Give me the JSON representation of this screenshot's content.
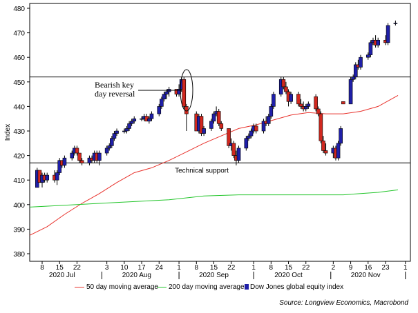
{
  "chart_data": {
    "type": "candlestick",
    "ylabel": "Index",
    "ylim": [
      380,
      480
    ],
    "yticks": [
      380,
      390,
      400,
      410,
      420,
      430,
      440,
      450,
      460,
      470,
      480
    ],
    "xlim": [
      "2020-07-03",
      "2020-12-03"
    ],
    "xticks": [
      {
        "date": "2020-07-08",
        "label": "8"
      },
      {
        "date": "2020-07-15",
        "label": "15"
      },
      {
        "date": "2020-07-22",
        "label": "22"
      },
      {
        "date": "2020-08-03",
        "label": "3"
      },
      {
        "date": "2020-08-10",
        "label": "10"
      },
      {
        "date": "2020-08-17",
        "label": "17"
      },
      {
        "date": "2020-08-24",
        "label": "24"
      },
      {
        "date": "2020-09-01",
        "label": "1"
      },
      {
        "date": "2020-09-08",
        "label": "8"
      },
      {
        "date": "2020-09-15",
        "label": "15"
      },
      {
        "date": "2020-09-22",
        "label": "22"
      },
      {
        "date": "2020-10-01",
        "label": "1"
      },
      {
        "date": "2020-10-08",
        "label": "8"
      },
      {
        "date": "2020-10-15",
        "label": "15"
      },
      {
        "date": "2020-10-22",
        "label": "22"
      },
      {
        "date": "2020-11-02",
        "label": "2"
      },
      {
        "date": "2020-11-09",
        "label": "9"
      },
      {
        "date": "2020-11-16",
        "label": "16"
      },
      {
        "date": "2020-11-23",
        "label": "23"
      },
      {
        "date": "2020-12-01",
        "label": "1"
      }
    ],
    "month_labels": [
      {
        "date": "2020-07-16",
        "label": "2020 Jul"
      },
      {
        "date": "2020-08-15",
        "label": "2020 Aug"
      },
      {
        "date": "2020-09-15",
        "label": "2020 Sep"
      },
      {
        "date": "2020-10-15",
        "label": "2020 Oct"
      },
      {
        "date": "2020-11-15",
        "label": "2020 Nov"
      }
    ],
    "series": [
      {
        "name": "50 day moving average",
        "color": "#e8312b",
        "points": [
          [
            "2020-07-03",
            387.5
          ],
          [
            "2020-07-10",
            391
          ],
          [
            "2020-07-17",
            396
          ],
          [
            "2020-07-24",
            400.5
          ],
          [
            "2020-07-31",
            404.5
          ],
          [
            "2020-08-07",
            409
          ],
          [
            "2020-08-14",
            413
          ],
          [
            "2020-08-21",
            415
          ],
          [
            "2020-08-28",
            418
          ],
          [
            "2020-09-04",
            421.5
          ],
          [
            "2020-09-11",
            425
          ],
          [
            "2020-09-18",
            428
          ],
          [
            "2020-09-25",
            431
          ],
          [
            "2020-10-02",
            432.5
          ],
          [
            "2020-10-09",
            434.5
          ],
          [
            "2020-10-16",
            436.5
          ],
          [
            "2020-10-23",
            437.5
          ],
          [
            "2020-10-30",
            437
          ],
          [
            "2020-11-06",
            437
          ],
          [
            "2020-11-13",
            438
          ],
          [
            "2020-11-20",
            440
          ],
          [
            "2020-11-28",
            444.5
          ]
        ]
      },
      {
        "name": "200 day moving average",
        "color": "#22c52a",
        "points": [
          [
            "2020-07-03",
            399
          ],
          [
            "2020-07-31",
            400.5
          ],
          [
            "2020-08-28",
            402
          ],
          [
            "2020-09-11",
            403.5
          ],
          [
            "2020-09-25",
            404
          ],
          [
            "2020-10-23",
            404
          ],
          [
            "2020-11-06",
            404
          ],
          [
            "2020-11-20",
            405
          ],
          [
            "2020-11-28",
            406
          ]
        ]
      }
    ],
    "candles_name": "Dow Jones global equity index",
    "candles_colors": {
      "up": "#1f1fa8",
      "down": "#d1281f"
    },
    "candles": [
      [
        "2020-07-06",
        407,
        415,
        407,
        414
      ],
      [
        "2020-07-07",
        414,
        414,
        409,
        409
      ],
      [
        "2020-07-08",
        409,
        413,
        407,
        412
      ],
      [
        "2020-07-09",
        412,
        413,
        409,
        410
      ],
      [
        "2020-07-10",
        410,
        413,
        409,
        412
      ],
      [
        "2020-07-13",
        412,
        414,
        409,
        410
      ],
      [
        "2020-07-14",
        410,
        414,
        408,
        413
      ],
      [
        "2020-07-15",
        413,
        419,
        412,
        418
      ],
      [
        "2020-07-16",
        418,
        418,
        415,
        416
      ],
      [
        "2020-07-17",
        416,
        420,
        415,
        419
      ],
      [
        "2020-07-20",
        419,
        422,
        418,
        421
      ],
      [
        "2020-07-21",
        421,
        424,
        420,
        423
      ],
      [
        "2020-07-22",
        423,
        424,
        420,
        421
      ],
      [
        "2020-07-23",
        421,
        421,
        417,
        418
      ],
      [
        "2020-07-24",
        418,
        419,
        416,
        417
      ],
      [
        "2020-07-27",
        417,
        420,
        416,
        419
      ],
      [
        "2020-07-28",
        419,
        420,
        417,
        418
      ],
      [
        "2020-07-29",
        418,
        422,
        417,
        421
      ],
      [
        "2020-07-30",
        421,
        422,
        417,
        418
      ],
      [
        "2020-07-31",
        418,
        422,
        416,
        421
      ],
      [
        "2020-08-03",
        421,
        424,
        420,
        423
      ],
      [
        "2020-08-04",
        423,
        425,
        422,
        424
      ],
      [
        "2020-08-05",
        424,
        428,
        423,
        427
      ],
      [
        "2020-08-06",
        427,
        430,
        426,
        429
      ],
      [
        "2020-08-07",
        429,
        431,
        428,
        430
      ],
      [
        "2020-08-10",
        430,
        431,
        429,
        430
      ],
      [
        "2020-08-11",
        430,
        432,
        429,
        431
      ],
      [
        "2020-08-12",
        431,
        434,
        430,
        433
      ],
      [
        "2020-08-13",
        433,
        435,
        432,
        434
      ],
      [
        "2020-08-14",
        434,
        436,
        433,
        435
      ],
      [
        "2020-08-17",
        435,
        436,
        434,
        435
      ],
      [
        "2020-08-18",
        435,
        437,
        434,
        436
      ],
      [
        "2020-08-19",
        436,
        437,
        434,
        434
      ],
      [
        "2020-08-20",
        434,
        436,
        433,
        435
      ],
      [
        "2020-08-21",
        435,
        438,
        434,
        437
      ],
      [
        "2020-08-24",
        437,
        441,
        436,
        440
      ],
      [
        "2020-08-25",
        440,
        444,
        439,
        443
      ],
      [
        "2020-08-26",
        443,
        446,
        442,
        445
      ],
      [
        "2020-08-27",
        445,
        447,
        443,
        446
      ],
      [
        "2020-08-28",
        446,
        448,
        444,
        447
      ],
      [
        "2020-08-31",
        447,
        447,
        444,
        445
      ],
      [
        "2020-09-01",
        445,
        449,
        444,
        447
      ],
      [
        "2020-09-02",
        447,
        452,
        446,
        451
      ],
      [
        "2020-09-03",
        451,
        452,
        439,
        440
      ],
      [
        "2020-09-04",
        440,
        441,
        430,
        437
      ],
      [
        "2020-09-08",
        437,
        438,
        430,
        430
      ],
      [
        "2020-09-09",
        430,
        437,
        429,
        436
      ],
      [
        "2020-09-10",
        436,
        437,
        428,
        429
      ],
      [
        "2020-09-11",
        429,
        432,
        428,
        431
      ],
      [
        "2020-09-14",
        431,
        435,
        430,
        434
      ],
      [
        "2020-09-15",
        434,
        438,
        433,
        437
      ],
      [
        "2020-09-16",
        437,
        440,
        436,
        438
      ],
      [
        "2020-09-17",
        438,
        439,
        432,
        433
      ],
      [
        "2020-09-18",
        433,
        434,
        430,
        431
      ],
      [
        "2020-09-21",
        431,
        431,
        423,
        424
      ],
      [
        "2020-09-22",
        424,
        427,
        422,
        425
      ],
      [
        "2020-09-23",
        425,
        426,
        419,
        420
      ],
      [
        "2020-09-24",
        420,
        422,
        416,
        418
      ],
      [
        "2020-09-25",
        418,
        424,
        417,
        423
      ],
      [
        "2020-09-28",
        423,
        428,
        422,
        427
      ],
      [
        "2020-09-29",
        427,
        429,
        426,
        428
      ],
      [
        "2020-09-30",
        428,
        431,
        427,
        430
      ],
      [
        "2020-10-01",
        430,
        433,
        429,
        432
      ],
      [
        "2020-10-02",
        432,
        433,
        429,
        430
      ],
      [
        "2020-10-05",
        430,
        435,
        429,
        434
      ],
      [
        "2020-10-06",
        434,
        436,
        432,
        433
      ],
      [
        "2020-10-07",
        433,
        437,
        432,
        436
      ],
      [
        "2020-10-08",
        436,
        441,
        435,
        440
      ],
      [
        "2020-10-09",
        440,
        446,
        439,
        445
      ],
      [
        "2020-10-12",
        445,
        452,
        444,
        451
      ],
      [
        "2020-10-13",
        451,
        452,
        447,
        448
      ],
      [
        "2020-10-14",
        448,
        450,
        445,
        446
      ],
      [
        "2020-10-15",
        446,
        447,
        440,
        442
      ],
      [
        "2020-10-16",
        442,
        446,
        441,
        445
      ],
      [
        "2020-10-19",
        445,
        446,
        440,
        441
      ],
      [
        "2020-10-20",
        441,
        443,
        439,
        440
      ],
      [
        "2020-10-21",
        440,
        442,
        438,
        439
      ],
      [
        "2020-10-22",
        439,
        441,
        438,
        440
      ],
      [
        "2020-10-23",
        440,
        442,
        439,
        441
      ],
      [
        "2020-10-26",
        444,
        445,
        438,
        439
      ],
      [
        "2020-10-27",
        439,
        440,
        436,
        437
      ],
      [
        "2020-10-28",
        437,
        438,
        425,
        426
      ],
      [
        "2020-10-29",
        426,
        428,
        421,
        422
      ],
      [
        "2020-10-30",
        422,
        425,
        420,
        421
      ],
      [
        "2020-11-02",
        421,
        424,
        419,
        423
      ],
      [
        "2020-11-03",
        423,
        424,
        418,
        419
      ],
      [
        "2020-11-04",
        419,
        426,
        418,
        425
      ],
      [
        "2020-11-05",
        425,
        432,
        424,
        431
      ],
      [
        "2020-11-06",
        442,
        442,
        441,
        441
      ],
      [
        "2020-11-09",
        441,
        452,
        441,
        451
      ],
      [
        "2020-11-10",
        451,
        453,
        450,
        452
      ],
      [
        "2020-11-11",
        452,
        458,
        451,
        457
      ],
      [
        "2020-11-12",
        457,
        459,
        455,
        456
      ],
      [
        "2020-11-13",
        456,
        461,
        455,
        460
      ],
      [
        "2020-11-16",
        460,
        462,
        459,
        461
      ],
      [
        "2020-11-17",
        461,
        467,
        460,
        466
      ],
      [
        "2020-11-18",
        466,
        468,
        465,
        467
      ],
      [
        "2020-11-19",
        467,
        469,
        464,
        465
      ],
      [
        "2020-11-20",
        465,
        468,
        464,
        467
      ],
      [
        "2020-11-23",
        467,
        469,
        465,
        466
      ],
      [
        "2020-11-24",
        466,
        474,
        465,
        473
      ],
      [
        "2020-11-27",
        474,
        475,
        473,
        474
      ]
    ],
    "hlines": [
      {
        "value": 452,
        "label": ""
      },
      {
        "value": 417,
        "label": "Technical support"
      }
    ],
    "annotations": {
      "key_reversal_line1": "Bearish key",
      "key_reversal_line2": "day reversal"
    },
    "legend_placement": "bottom"
  },
  "legend": {
    "ma50_label": "50 day moving average",
    "ma200_label": "200 day moving average",
    "index_label": "Dow Jones global equity index"
  },
  "source": "Source: Longview Economics, Macrobond"
}
